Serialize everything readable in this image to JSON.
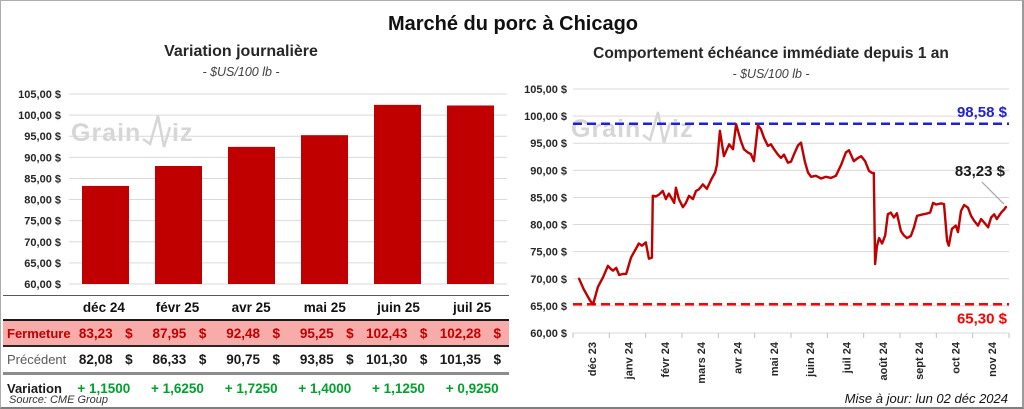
{
  "header": {
    "title": "Marché du porc à Chicago"
  },
  "watermark": {
    "left": "Grain",
    "right": "iz"
  },
  "footer": {
    "source": "Source: CME Group",
    "updated": "Mise à jour: lun 02 déc 2024"
  },
  "table": {
    "columns": [
      "déc 24",
      "févr 25",
      "avr 25",
      "mai 25",
      "juin 25",
      "juil 25"
    ],
    "rows": [
      {
        "key": "fermeture",
        "label": "Fermeture",
        "suffix": "$",
        "values": [
          "83,23",
          "87,95",
          "92,48",
          "95,25",
          "102,43",
          "102,28"
        ],
        "bg": "#F8ACAA",
        "label_color": "#C00000",
        "value_color": "#C00000"
      },
      {
        "key": "precedent",
        "label": "Précédent",
        "suffix": "$",
        "values": [
          "82,08",
          "86,33",
          "90,75",
          "93,85",
          "101,30",
          "101,35"
        ],
        "bg": "",
        "label_color": "#595959",
        "value_color": "#1a1a1a"
      },
      {
        "key": "variation",
        "label": "Variation",
        "suffix": "",
        "values": [
          "+ 1,1500",
          "+ 1,6250",
          "+ 1,7250",
          "+ 1,4000",
          "+ 1,1250",
          "+ 0,9250"
        ],
        "bg": "",
        "label_color": "#1a1a1a",
        "value_color": "#00A02E"
      }
    ]
  },
  "chart_data": [
    {
      "type": "bar",
      "title": "Variation journalière",
      "subtitle": "- $US/100 lb -",
      "categories": [
        "déc 24",
        "févr 25",
        "avr 25",
        "mai 25",
        "juin 25",
        "juil 25"
      ],
      "values": [
        83.23,
        87.95,
        92.48,
        95.25,
        102.43,
        102.28
      ],
      "ylim": [
        60,
        105
      ],
      "ytick_step": 5,
      "yticks": [
        "105,00 $",
        "100,00 $",
        "95,00 $",
        "90,00 $",
        "85,00 $",
        "80,00 $",
        "75,00 $",
        "70,00 $",
        "65,00 $",
        "60,00 $"
      ],
      "bar_color": "#C00000",
      "grid": true,
      "legend": "none"
    },
    {
      "type": "line",
      "title": "Comportement échéance immédiate depuis 1 an",
      "subtitle": "- $US/100 lb -",
      "x_ticks": [
        "déc 23",
        "janv 24",
        "févr 24",
        "mars 24",
        "avr 24",
        "mai 24",
        "juin 24",
        "juil 24",
        "août 24",
        "sept 24",
        "oct 24",
        "nov 24"
      ],
      "ylim": [
        60,
        105
      ],
      "ytick_step": 5,
      "yticks": [
        "105,00 $",
        "100,00 $",
        "95,00 $",
        "90,00 $",
        "85,00 $",
        "80,00 $",
        "75,00 $",
        "70,00 $",
        "65,00 $",
        "60,00 $"
      ],
      "grid": true,
      "legend": "none",
      "series": [
        {
          "name": "échéance immédiate",
          "color": "#C00000",
          "points": [
            [
              0.014,
              70.0
            ],
            [
              0.025,
              68.0
            ],
            [
              0.039,
              66.0
            ],
            [
              0.046,
              65.3
            ],
            [
              0.057,
              68.5
            ],
            [
              0.069,
              70.3
            ],
            [
              0.08,
              72.4
            ],
            [
              0.087,
              71.8
            ],
            [
              0.092,
              71.5
            ],
            [
              0.099,
              72.0
            ],
            [
              0.106,
              70.7
            ],
            [
              0.115,
              70.9
            ],
            [
              0.122,
              70.9
            ],
            [
              0.133,
              73.9
            ],
            [
              0.144,
              75.5
            ],
            [
              0.151,
              76.5
            ],
            [
              0.158,
              76.1
            ],
            [
              0.167,
              76.7
            ],
            [
              0.174,
              73.7
            ],
            [
              0.181,
              73.9
            ],
            [
              0.183,
              85.3
            ],
            [
              0.19,
              85.2
            ],
            [
              0.197,
              85.5
            ],
            [
              0.206,
              86.2
            ],
            [
              0.213,
              84.7
            ],
            [
              0.22,
              85.7
            ],
            [
              0.232,
              84.0
            ],
            [
              0.236,
              86.8
            ],
            [
              0.243,
              84.7
            ],
            [
              0.252,
              83.2
            ],
            [
              0.259,
              84.0
            ],
            [
              0.266,
              85.3
            ],
            [
              0.275,
              84.7
            ],
            [
              0.282,
              86.2
            ],
            [
              0.289,
              86.5
            ],
            [
              0.298,
              87.4
            ],
            [
              0.307,
              86.6
            ],
            [
              0.317,
              88.3
            ],
            [
              0.326,
              89.6
            ],
            [
              0.33,
              91.0
            ],
            [
              0.337,
              97.3
            ],
            [
              0.346,
              92.6
            ],
            [
              0.358,
              94.8
            ],
            [
              0.367,
              93.9
            ],
            [
              0.374,
              98.5
            ],
            [
              0.385,
              95.4
            ],
            [
              0.392,
              93.9
            ],
            [
              0.401,
              93.3
            ],
            [
              0.408,
              93.0
            ],
            [
              0.415,
              91.7
            ],
            [
              0.424,
              98.3
            ],
            [
              0.431,
              97.6
            ],
            [
              0.438,
              96.0
            ],
            [
              0.447,
              94.5
            ],
            [
              0.454,
              94.8
            ],
            [
              0.461,
              93.9
            ],
            [
              0.47,
              92.9
            ],
            [
              0.477,
              92.3
            ],
            [
              0.484,
              92.9
            ],
            [
              0.493,
              91.4
            ],
            [
              0.5,
              91.6
            ],
            [
              0.507,
              93.0
            ],
            [
              0.516,
              94.6
            ],
            [
              0.523,
              95.1
            ],
            [
              0.532,
              91.5
            ],
            [
              0.539,
              89.6
            ],
            [
              0.546,
              88.8
            ],
            [
              0.557,
              89.0
            ],
            [
              0.569,
              88.5
            ],
            [
              0.58,
              88.8
            ],
            [
              0.592,
              88.6
            ],
            [
              0.603,
              89.0
            ],
            [
              0.615,
              91.0
            ],
            [
              0.626,
              93.3
            ],
            [
              0.633,
              93.7
            ],
            [
              0.644,
              91.7
            ],
            [
              0.654,
              92.3
            ],
            [
              0.661,
              92.6
            ],
            [
              0.67,
              91.7
            ],
            [
              0.679,
              89.9
            ],
            [
              0.686,
              89.5
            ],
            [
              0.69,
              89.5
            ],
            [
              0.693,
              72.7
            ],
            [
              0.697,
              76.0
            ],
            [
              0.702,
              77.5
            ],
            [
              0.709,
              76.5
            ],
            [
              0.716,
              78.0
            ],
            [
              0.722,
              81.9
            ],
            [
              0.729,
              82.2
            ],
            [
              0.736,
              81.3
            ],
            [
              0.743,
              82.1
            ],
            [
              0.752,
              78.8
            ],
            [
              0.759,
              78.0
            ],
            [
              0.766,
              77.5
            ],
            [
              0.775,
              77.9
            ],
            [
              0.782,
              79.5
            ],
            [
              0.789,
              81.6
            ],
            [
              0.798,
              81.8
            ],
            [
              0.81,
              82.0
            ],
            [
              0.819,
              82.2
            ],
            [
              0.826,
              84.0
            ],
            [
              0.833,
              83.7
            ],
            [
              0.844,
              83.9
            ],
            [
              0.851,
              83.8
            ],
            [
              0.858,
              77.0
            ],
            [
              0.862,
              76.1
            ],
            [
              0.869,
              79.2
            ],
            [
              0.878,
              79.8
            ],
            [
              0.883,
              78.6
            ],
            [
              0.89,
              82.5
            ],
            [
              0.897,
              83.6
            ],
            [
              0.906,
              83.1
            ],
            [
              0.913,
              81.6
            ],
            [
              0.92,
              80.7
            ],
            [
              0.929,
              79.8
            ],
            [
              0.936,
              81.0
            ],
            [
              0.943,
              80.4
            ],
            [
              0.952,
              79.5
            ],
            [
              0.959,
              81.3
            ],
            [
              0.966,
              81.9
            ],
            [
              0.972,
              81.0
            ],
            [
              0.982,
              82.2
            ],
            [
              0.989,
              82.8
            ],
            [
              0.993,
              83.23
            ]
          ]
        }
      ],
      "reference_lines": [
        {
          "value": 98.58,
          "label": "98,58 $",
          "color": "#2121CE",
          "style": "dashed",
          "label_position": "above"
        },
        {
          "value": 65.3,
          "label": "65,30 $",
          "color": "#FE0000",
          "style": "dashed",
          "label_position": "below"
        }
      ],
      "end_label": {
        "text": "83,23 $",
        "t": 0.993,
        "value": 83.23
      }
    }
  ]
}
